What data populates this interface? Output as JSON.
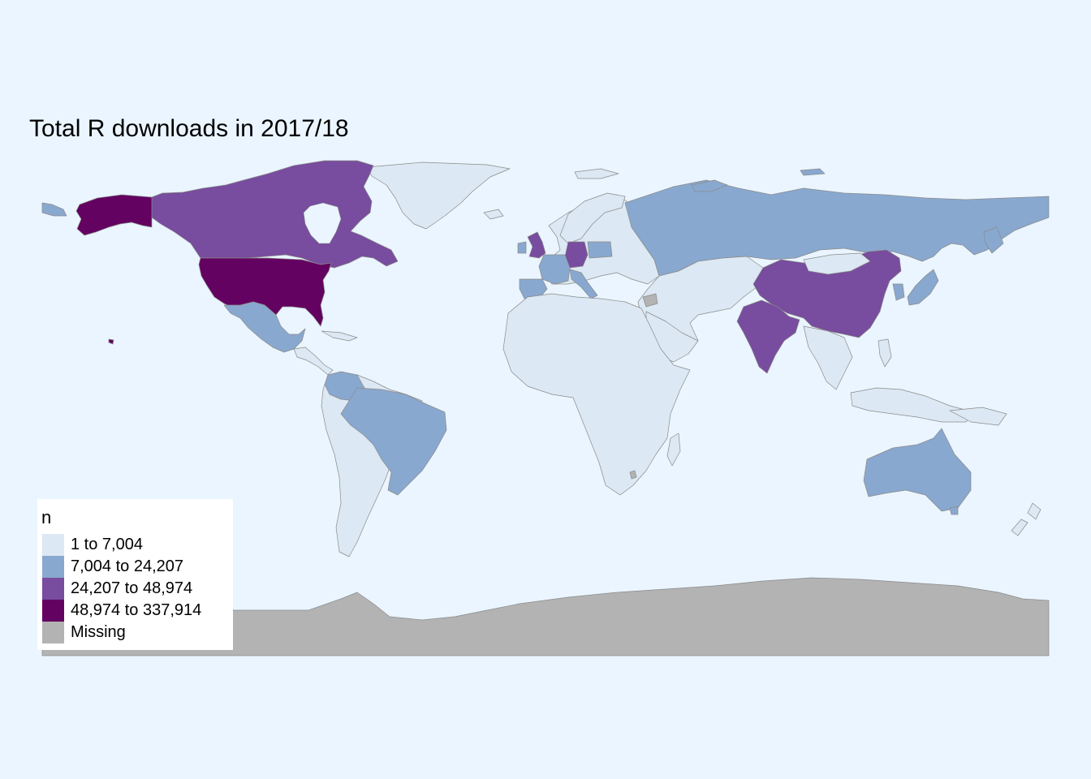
{
  "title": "Total R downloads in 2017/18",
  "legend": {
    "title": "n",
    "items": [
      {
        "label": "1 to 7,004",
        "color": "#dce8f3"
      },
      {
        "label": "7,004 to 24,207",
        "color": "#89a8cf"
      },
      {
        "label": "24,207 to 48,974",
        "color": "#784c9e"
      },
      {
        "label": "48,974 to 337,914",
        "color": "#630260"
      },
      {
        "label": "Missing",
        "color": "#b3b3b3"
      }
    ]
  },
  "colors": {
    "background": "#eaf5ff",
    "class_1": "#dce8f3",
    "class_2": "#89a8cf",
    "class_3": "#784c9e",
    "class_4": "#630260",
    "missing": "#b3b3b3"
  },
  "chart_data": {
    "type": "choropleth",
    "title": "Total R downloads in 2017/18",
    "variable": "n",
    "classes": [
      "1 to 7,004",
      "7,004 to 24,207",
      "24,207 to 48,974",
      "48,974 to 337,914",
      "Missing"
    ],
    "regions": [
      {
        "region": "United States",
        "class": "48,974 to 337,914"
      },
      {
        "region": "Canada",
        "class": "24,207 to 48,974"
      },
      {
        "region": "United Kingdom",
        "class": "24,207 to 48,974"
      },
      {
        "region": "Germany",
        "class": "24,207 to 48,974"
      },
      {
        "region": "China",
        "class": "24,207 to 48,974"
      },
      {
        "region": "India",
        "class": "24,207 to 48,974"
      },
      {
        "region": "Russia",
        "class": "7,004 to 24,207"
      },
      {
        "region": "Brazil",
        "class": "7,004 to 24,207"
      },
      {
        "region": "Australia",
        "class": "7,004 to 24,207"
      },
      {
        "region": "Mexico",
        "class": "7,004 to 24,207"
      },
      {
        "region": "France",
        "class": "7,004 to 24,207"
      },
      {
        "region": "Spain",
        "class": "7,004 to 24,207"
      },
      {
        "region": "Japan",
        "class": "7,004 to 24,207"
      },
      {
        "region": "Colombia",
        "class": "7,004 to 24,207"
      },
      {
        "region": "Poland",
        "class": "7,004 to 24,207"
      },
      {
        "region": "Italy",
        "class": "7,004 to 24,207"
      },
      {
        "region": "Greenland",
        "class": "1 to 7,004"
      },
      {
        "region": "Africa",
        "class": "1 to 7,004"
      },
      {
        "region": "Antarctica",
        "class": "Missing"
      }
    ]
  }
}
